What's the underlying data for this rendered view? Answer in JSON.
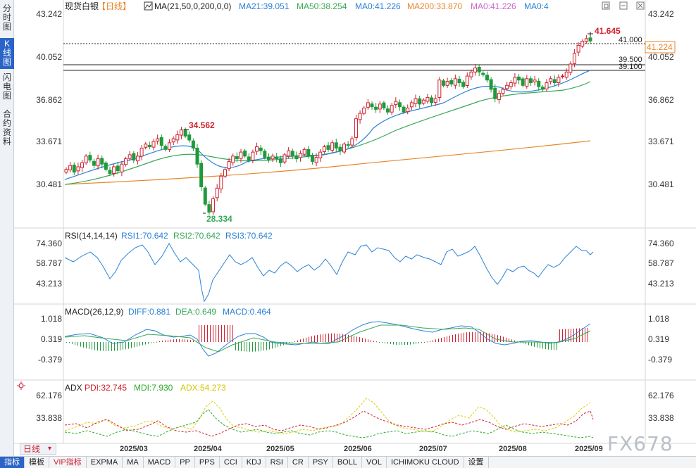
{
  "sidebar": {
    "tabs": [
      {
        "label": "分时图",
        "chars": [
          "分",
          "时",
          "图"
        ],
        "active": false
      },
      {
        "label": "K线图",
        "chars": [
          "K",
          "线",
          "图"
        ],
        "active": true
      },
      {
        "label": "闪电图",
        "chars": [
          "闪",
          "电",
          "图"
        ],
        "active": false
      },
      {
        "label": "合约资料",
        "chars": [
          "合",
          "约",
          "资",
          "料"
        ],
        "active": false
      }
    ]
  },
  "header": {
    "symbol": "现货白银",
    "period_tag": "【日线】",
    "ma_label": "MA(21,50,0,200,0,0)",
    "ma_values": [
      {
        "text": "MA21:39.051",
        "color": "#2a82d6"
      },
      {
        "text": "MA50:38.254",
        "color": "#38a858"
      },
      {
        "text": "MA0:41.226",
        "color": "#2a82d6"
      },
      {
        "text": "MA200:33.870",
        "color": "#e8862a"
      },
      {
        "text": "MA0:41.226",
        "color": "#cc66cc"
      },
      {
        "text": "MA0:4",
        "color": "#2a82d6"
      }
    ]
  },
  "main_axis": {
    "ticks": [
      "43.242",
      "40.052",
      "36.862",
      "33.671",
      "30.481"
    ],
    "tick_values": [
      43.242,
      40.052,
      36.862,
      33.671,
      30.481
    ]
  },
  "price_labels": {
    "current": "41.224",
    "high_marker": "41.645",
    "peak_marker": "34.562",
    "low_marker": "28.334",
    "level_41": "41.000",
    "level_395": "39.500",
    "level_391": "39.100"
  },
  "rsi": {
    "label": "RSI(14,14,14)",
    "values": [
      {
        "text": "RSI1:70.642",
        "color": "#2a82d6"
      },
      {
        "text": "RSI2:70.642",
        "color": "#38a858"
      },
      {
        "text": "RSI3:70.642",
        "color": "#2a82d6"
      }
    ],
    "ticks": [
      "74.360",
      "58.787",
      "43.213"
    ]
  },
  "macd": {
    "label": "MACD(26,12,9)",
    "values": [
      {
        "text": "DIFF:0.881",
        "color": "#2a82d6"
      },
      {
        "text": "DEA:0.649",
        "color": "#38a858"
      },
      {
        "text": "MACD:0.464",
        "color": "#2a82d6"
      }
    ],
    "ticks": [
      "1.018",
      "0.319",
      "-0.379"
    ]
  },
  "adx": {
    "label": "ADX",
    "values": [
      {
        "text": "PDI:32.745",
        "color": "#d0202e"
      },
      {
        "text": "MDI:7.930",
        "color": "#2aaa2a"
      },
      {
        "text": "ADX:54.273",
        "color": "#e0d020"
      }
    ],
    "ticks": [
      "62.176",
      "33.838"
    ]
  },
  "x_axis": {
    "labels": [
      "2025/03",
      "2025/04",
      "2025/05",
      "2025/06",
      "2025/07",
      "2025/08",
      "2025/09"
    ]
  },
  "period_button": "日线",
  "toolbar": {
    "items": [
      "指标",
      "模板",
      "VIP指标",
      "EXPMA",
      "MA",
      "MACD",
      "PP",
      "PPS",
      "CCI",
      "KDJ",
      "RSI",
      "CR",
      "PSY",
      "BOLL",
      "VOL",
      "ICHIMOKU CLOUD",
      "设置"
    ]
  },
  "watermark": "FX678",
  "chart_data": {
    "type": "candlestick",
    "title": "现货白银【日线】",
    "x_ticks": [
      "2025/03",
      "2025/04",
      "2025/05",
      "2025/06",
      "2025/07",
      "2025/08",
      "2025/09"
    ],
    "y_ticks": [
      43.242,
      40.052,
      36.862,
      33.671,
      30.481
    ],
    "ylim": [
      28.0,
      43.6
    ],
    "annotations": {
      "high": 41.645,
      "last": 41.224,
      "peak_mar": 34.562,
      "low_apr": 28.334
    },
    "horizontal_lines": [
      41.0,
      39.5,
      39.1
    ],
    "indicators": {
      "MA21": 39.051,
      "MA50": 38.254,
      "MA200": 33.87,
      "RSI": 70.642,
      "DIFF": 0.881,
      "DEA": 0.649,
      "MACD": 0.464,
      "PDI": 32.745,
      "MDI": 7.93,
      "ADX": 54.273
    },
    "close_series": [
      31.6,
      31.9,
      31.4,
      31.8,
      32.1,
      32.6,
      32.3,
      31.9,
      32.4,
      32.0,
      31.6,
      31.3,
      31.8,
      31.5,
      32.0,
      32.4,
      32.7,
      32.3,
      32.6,
      33.2,
      33.5,
      33.3,
      33.7,
      33.9,
      33.4,
      33.1,
      33.6,
      33.9,
      34.2,
      34.562,
      34.1,
      33.8,
      33.2,
      32.0,
      30.3,
      29.0,
      28.4,
      29.4,
      30.2,
      31.1,
      31.6,
      32.2,
      32.6,
      32.4,
      32.9,
      32.6,
      32.3,
      32.9,
      33.3,
      33.0,
      32.5,
      32.3,
      32.6,
      32.4,
      32.1,
      32.7,
      33.0,
      32.6,
      32.4,
      32.8,
      33.1,
      32.6,
      32.2,
      32.5,
      32.9,
      33.3,
      33.1,
      33.6,
      33.2,
      33.0,
      33.5,
      33.4,
      33.9,
      35.4,
      35.8,
      36.2,
      36.6,
      36.3,
      36.1,
      36.5,
      36.2,
      35.9,
      36.4,
      36.7,
      36.3,
      35.9,
      36.2,
      36.6,
      36.9,
      36.5,
      36.8,
      37.0,
      36.6,
      36.9,
      38.3,
      37.9,
      38.2,
      38.0,
      38.4,
      38.1,
      37.8,
      38.6,
      38.9,
      39.2,
      38.9,
      38.7,
      38.3,
      37.6,
      36.9,
      37.3,
      37.6,
      37.9,
      38.1,
      38.5,
      38.3,
      37.9,
      38.4,
      38.1,
      38.3,
      37.8,
      37.6,
      38.1,
      38.4,
      38.1,
      38.5,
      38.6,
      38.9,
      39.5,
      40.3,
      40.9,
      41.2,
      41.4,
      41.224
    ]
  }
}
